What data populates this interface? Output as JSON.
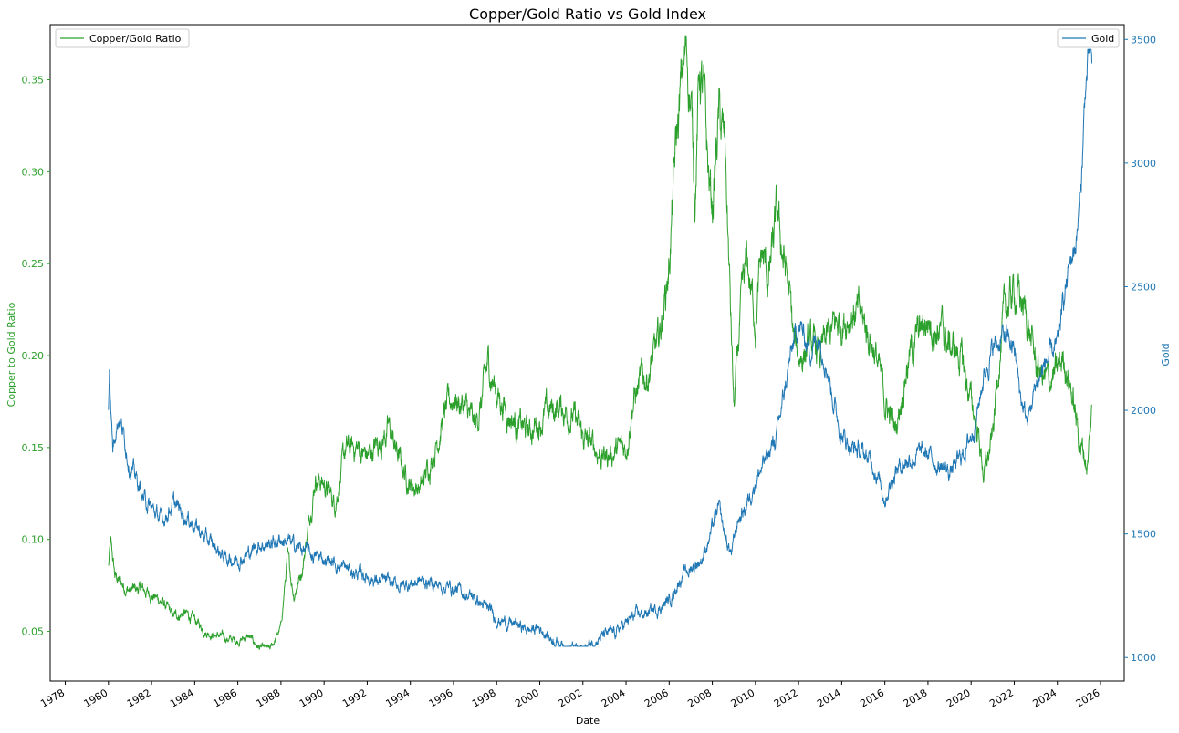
{
  "chart_data": {
    "type": "line",
    "title": "Copper/Gold Ratio vs Gold Index",
    "xlabel": "Date",
    "ylabel_left": "Copper to Gold Ratio",
    "ylabel_right": "Gold",
    "xlim": [
      1977.3,
      2027.1
    ],
    "ylim_left": [
      0.023,
      0.38
    ],
    "ylim_right": [
      905,
      3560
    ],
    "grid": false,
    "x_ticks": [
      "1978",
      "1980",
      "1982",
      "1984",
      "1986",
      "1988",
      "1990",
      "1992",
      "1994",
      "1996",
      "1998",
      "2000",
      "2002",
      "2004",
      "2006",
      "2008",
      "2010",
      "2012",
      "2014",
      "2016",
      "2018",
      "2020",
      "2022",
      "2024",
      "2026"
    ],
    "y_ticks_left": [
      "0.05",
      "0.10",
      "0.15",
      "0.20",
      "0.25",
      "0.30",
      "0.35"
    ],
    "y_ticks_right": [
      "1000",
      "1500",
      "2000",
      "2500",
      "3000",
      "3500"
    ],
    "colors": {
      "ratio": "#2ca02c",
      "gold": "#1f77b4"
    },
    "legend_left": {
      "label": "Copper/Gold Ratio",
      "placement": "upper-left"
    },
    "legend_right": {
      "label": "Gold",
      "placement": "upper-right"
    },
    "series": [
      {
        "name": "Copper/Gold Ratio",
        "axis": "left",
        "x": [
          1980.0,
          1980.1,
          1980.3,
          1980.6,
          1981.0,
          1981.5,
          1982.0,
          1982.5,
          1983.0,
          1983.5,
          1984.0,
          1984.5,
          1985.0,
          1985.5,
          1986.0,
          1986.5,
          1987.0,
          1987.5,
          1988.0,
          1988.3,
          1988.6,
          1989.0,
          1989.3,
          1989.6,
          1990.0,
          1990.5,
          1991.0,
          1991.5,
          1992.0,
          1992.5,
          1993.0,
          1993.3,
          1993.6,
          1994.0,
          1994.5,
          1995.0,
          1995.5,
          1996.0,
          1996.5,
          1997.0,
          1997.3,
          1997.6,
          1998.0,
          1998.5,
          1999.0,
          1999.5,
          2000.0,
          2000.5,
          2001.0,
          2001.5,
          2002.0,
          2002.5,
          2003.0,
          2003.5,
          2004.0,
          2004.3,
          2004.7,
          2005.0,
          2005.5,
          2006.0,
          2006.3,
          2006.6,
          2006.8,
          2007.0,
          2007.2,
          2007.4,
          2007.6,
          2007.8,
          2008.0,
          2008.3,
          2008.6,
          2008.8,
          2009.0,
          2009.3,
          2009.6,
          2010.0,
          2010.3,
          2010.6,
          2011.0,
          2011.2,
          2011.5,
          2011.8,
          2012.0,
          2012.5,
          2013.0,
          2013.5,
          2014.0,
          2014.5,
          2015.0,
          2015.5,
          2016.0,
          2016.5,
          2017.0,
          2017.5,
          2018.0,
          2018.5,
          2019.0,
          2019.5,
          2020.0,
          2020.3,
          2020.6,
          2021.0,
          2021.3,
          2021.6,
          2022.0,
          2022.3,
          2022.6,
          2023.0,
          2023.5,
          2024.0,
          2024.3,
          2024.6,
          2025.0,
          2025.2,
          2025.4,
          2025.6
        ],
        "values": [
          0.085,
          0.097,
          0.08,
          0.076,
          0.072,
          0.073,
          0.07,
          0.066,
          0.058,
          0.06,
          0.056,
          0.05,
          0.048,
          0.046,
          0.045,
          0.047,
          0.041,
          0.04,
          0.052,
          0.09,
          0.07,
          0.085,
          0.11,
          0.135,
          0.13,
          0.12,
          0.148,
          0.15,
          0.145,
          0.152,
          0.16,
          0.15,
          0.14,
          0.13,
          0.128,
          0.145,
          0.165,
          0.178,
          0.172,
          0.16,
          0.175,
          0.195,
          0.18,
          0.17,
          0.162,
          0.158,
          0.165,
          0.17,
          0.172,
          0.168,
          0.155,
          0.15,
          0.145,
          0.148,
          0.15,
          0.175,
          0.185,
          0.19,
          0.205,
          0.25,
          0.31,
          0.35,
          0.365,
          0.34,
          0.29,
          0.355,
          0.34,
          0.3,
          0.28,
          0.33,
          0.31,
          0.24,
          0.17,
          0.22,
          0.25,
          0.22,
          0.255,
          0.24,
          0.275,
          0.26,
          0.24,
          0.205,
          0.2,
          0.205,
          0.2,
          0.212,
          0.22,
          0.225,
          0.218,
          0.205,
          0.175,
          0.16,
          0.195,
          0.21,
          0.22,
          0.215,
          0.205,
          0.2,
          0.175,
          0.16,
          0.135,
          0.155,
          0.2,
          0.225,
          0.235,
          0.23,
          0.22,
          0.195,
          0.185,
          0.19,
          0.2,
          0.185,
          0.155,
          0.148,
          0.14,
          0.17
        ],
        "extent_min": 0.0385,
        "extent_max": 0.374
      },
      {
        "name": "Gold",
        "axis": "right",
        "x": [
          1980.0,
          1980.05,
          1980.1,
          1980.2,
          1980.35,
          1980.5,
          1980.7,
          1981.0,
          1981.3,
          1981.6,
          1982.0,
          1982.5,
          1982.8,
          1983.0,
          1983.5,
          1984.0,
          1984.5,
          1985.0,
          1985.5,
          1986.0,
          1986.5,
          1987.0,
          1987.5,
          1988.0,
          1988.3,
          1988.6,
          1989.0,
          1989.5,
          1990.0,
          1990.5,
          1991.0,
          1991.5,
          1992.0,
          1992.5,
          1993.0,
          1993.5,
          1994.0,
          1994.5,
          1995.0,
          1995.5,
          1996.0,
          1996.5,
          1997.0,
          1997.5,
          1998.0,
          1998.5,
          1999.0,
          1999.5,
          2000.0,
          2000.5,
          2001.0,
          2001.5,
          2002.0,
          2002.5,
          2003.0,
          2003.5,
          2004.0,
          2004.5,
          2005.0,
          2005.5,
          2006.0,
          2006.5,
          2007.0,
          2007.5,
          2008.0,
          2008.3,
          2008.6,
          2008.9,
          2009.2,
          2009.5,
          2010.0,
          2010.5,
          2011.0,
          2011.3,
          2011.6,
          2012.0,
          2012.5,
          2013.0,
          2013.3,
          2013.6,
          2014.0,
          2014.5,
          2015.0,
          2015.5,
          2016.0,
          2016.5,
          2017.0,
          2017.5,
          2018.0,
          2018.5,
          2019.0,
          2019.5,
          2020.0,
          2020.3,
          2020.6,
          2021.0,
          2021.5,
          2022.0,
          2022.3,
          2022.6,
          2023.0,
          2023.5,
          2024.0,
          2024.3,
          2024.6,
          2024.9,
          2025.1,
          2025.3,
          2025.5,
          2025.6
        ],
        "values": [
          2000,
          2200,
          2050,
          1850,
          1950,
          1980,
          1900,
          1780,
          1720,
          1650,
          1600,
          1550,
          1600,
          1620,
          1580,
          1540,
          1480,
          1440,
          1400,
          1400,
          1420,
          1460,
          1460,
          1480,
          1470,
          1450,
          1440,
          1410,
          1400,
          1380,
          1360,
          1340,
          1330,
          1310,
          1300,
          1290,
          1300,
          1310,
          1300,
          1290,
          1280,
          1260,
          1240,
          1200,
          1160,
          1140,
          1130,
          1110,
          1120,
          1080,
          1060,
          1040,
          1030,
          1070,
          1090,
          1100,
          1140,
          1170,
          1180,
          1200,
          1230,
          1320,
          1360,
          1400,
          1520,
          1600,
          1480,
          1420,
          1560,
          1600,
          1720,
          1800,
          1900,
          2050,
          2200,
          2350,
          2250,
          2300,
          2200,
          2050,
          1900,
          1850,
          1820,
          1780,
          1650,
          1760,
          1800,
          1820,
          1820,
          1780,
          1750,
          1800,
          1900,
          2000,
          2150,
          2250,
          2300,
          2250,
          2050,
          1950,
          2100,
          2200,
          2250,
          2450,
          2600,
          2700,
          2900,
          3300,
          3450,
          3350
        ],
        "extent_min": 1045,
        "extent_max": 3460
      }
    ]
  }
}
